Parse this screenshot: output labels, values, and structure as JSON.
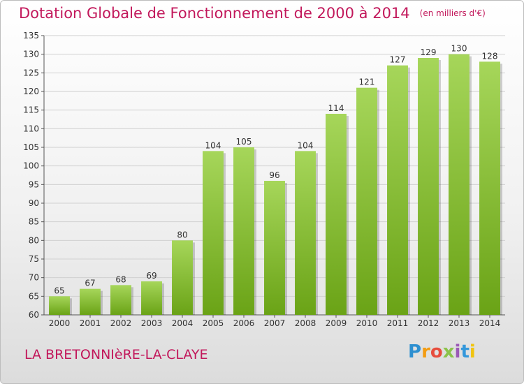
{
  "title": "Dotation Globale de Fonctionnement de 2000 à 2014",
  "unit_note": "(en milliers d'€)",
  "commune": "LA BRETONNIèRE-LA-CLAYE",
  "logo": {
    "letters": [
      "P",
      "r",
      "o",
      "x",
      "i",
      "t",
      "i"
    ],
    "colors": [
      "#2d8fd0",
      "#f39c12",
      "#e74c3c",
      "#8bc34a",
      "#9b59b6",
      "#3498db",
      "#f1c40f"
    ]
  },
  "colors": {
    "bar_top": "#a6d65a",
    "bar_bottom": "#6aa316",
    "grid": "#d0d0d0",
    "accent": "#c2185b"
  },
  "chart_data": {
    "type": "bar",
    "title": "Dotation Globale de Fonctionnement de 2000 à 2014",
    "xlabel": "",
    "ylabel": "",
    "categories": [
      "2000",
      "2001",
      "2002",
      "2003",
      "2004",
      "2005",
      "2006",
      "2007",
      "2008",
      "2009",
      "2010",
      "2011",
      "2012",
      "2013",
      "2014"
    ],
    "values": [
      65,
      67,
      68,
      69,
      80,
      104,
      105,
      96,
      104,
      114,
      121,
      127,
      129,
      130,
      128
    ],
    "ylim": [
      60,
      135
    ],
    "yticks": [
      60,
      65,
      70,
      75,
      80,
      85,
      90,
      95,
      100,
      105,
      110,
      115,
      120,
      125,
      130,
      135
    ],
    "grid": true,
    "legend": "none"
  }
}
